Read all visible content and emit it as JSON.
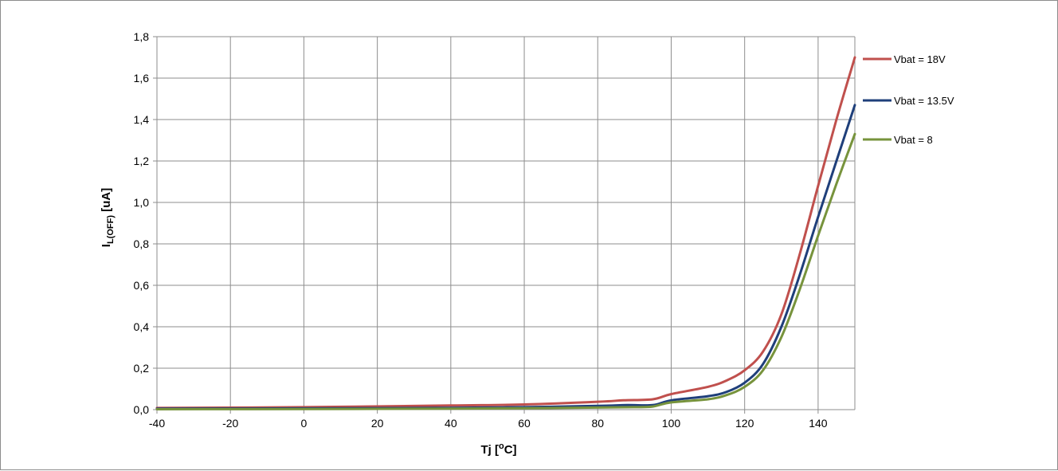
{
  "chart_data": {
    "type": "line",
    "xlabel": {
      "main": "Tj [",
      "sup": "o",
      "unit": "C]"
    },
    "ylabel": {
      "main": "I",
      "sub": "L(OFF)",
      "unit": " [uA]"
    },
    "xlim": [
      -40,
      150
    ],
    "ylim": [
      0,
      1.8
    ],
    "x_ticks": [
      -40,
      -20,
      0,
      20,
      40,
      60,
      80,
      100,
      120,
      140
    ],
    "x_tick_labels": [
      "-40",
      "-20",
      "0",
      "20",
      "40",
      "60",
      "80",
      "100",
      "120",
      "140"
    ],
    "y_ticks": [
      0,
      0.2,
      0.4,
      0.6,
      0.8,
      1.0,
      1.2,
      1.4,
      1.6,
      1.8
    ],
    "y_tick_labels": [
      "0,0",
      "0,2",
      "0,4",
      "0,6",
      "0,8",
      "1,0",
      "1,2",
      "1,4",
      "1,6",
      "1,8"
    ],
    "grid": true,
    "legend": "right",
    "series": [
      {
        "name": "Vbat = 18V",
        "color": "#c0504d",
        "x": [
          -40,
          0,
          40,
          60,
          80,
          87,
          95,
          100,
          110,
          115,
          120,
          125,
          130,
          135,
          140,
          145,
          150
        ],
        "y": [
          0.008,
          0.012,
          0.02,
          0.025,
          0.038,
          0.045,
          0.05,
          0.075,
          0.11,
          0.14,
          0.19,
          0.28,
          0.46,
          0.75,
          1.08,
          1.4,
          1.7
        ]
      },
      {
        "name": "Vbat = 13.5V",
        "color": "#1f3f7a",
        "x": [
          -40,
          0,
          40,
          60,
          80,
          88,
          95,
          100,
          110,
          115,
          120,
          125,
          130,
          135,
          140,
          145,
          150
        ],
        "y": [
          0.005,
          0.006,
          0.009,
          0.012,
          0.018,
          0.022,
          0.022,
          0.045,
          0.065,
          0.085,
          0.13,
          0.22,
          0.4,
          0.65,
          0.93,
          1.2,
          1.47
        ]
      },
      {
        "name": "Vbat = 8",
        "color": "#77933c",
        "x": [
          -40,
          0,
          40,
          60,
          80,
          90,
          95,
          100,
          110,
          115,
          120,
          125,
          130,
          135,
          140,
          145,
          150
        ],
        "y": [
          0.002,
          0.003,
          0.005,
          0.007,
          0.01,
          0.012,
          0.015,
          0.035,
          0.05,
          0.07,
          0.11,
          0.19,
          0.35,
          0.58,
          0.84,
          1.09,
          1.33
        ]
      }
    ]
  }
}
